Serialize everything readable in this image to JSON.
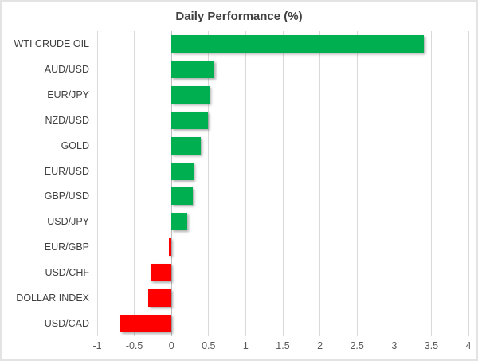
{
  "chart_data": {
    "type": "bar",
    "orientation": "horizontal",
    "title": "Daily Performance (%)",
    "categories": [
      "WTI CRUDE OIL",
      "AUD/USD",
      "EUR/JPY",
      "NZD/USD",
      "GOLD",
      "EUR/USD",
      "GBP/USD",
      "USD/JPY",
      "EUR/GBP",
      "USD/CHF",
      "DOLLAR INDEX",
      "USD/CAD"
    ],
    "values": [
      3.4,
      0.58,
      0.51,
      0.49,
      0.4,
      0.3,
      0.29,
      0.21,
      -0.03,
      -0.28,
      -0.31,
      -0.69
    ],
    "xlabel": "",
    "ylabel": "",
    "xlim": [
      -1,
      4
    ],
    "x_tick_labels": [
      "-1",
      "-0.5",
      "0",
      "0.5",
      "1",
      "1.5",
      "2",
      "2.5",
      "3",
      "3.5",
      "4"
    ],
    "grid": "vertical-on",
    "legend": "none",
    "colors": {
      "positive_bar": "#00B050",
      "negative_bar": "#FF0000",
      "gridline": "#D9D9D9",
      "axis_line": "#BFBFBF",
      "title_text": "#404040",
      "category_text": "#404040",
      "tick_text": "#595959",
      "chart_border": "#E3E3E3",
      "background": "#FFFFFF"
    }
  }
}
